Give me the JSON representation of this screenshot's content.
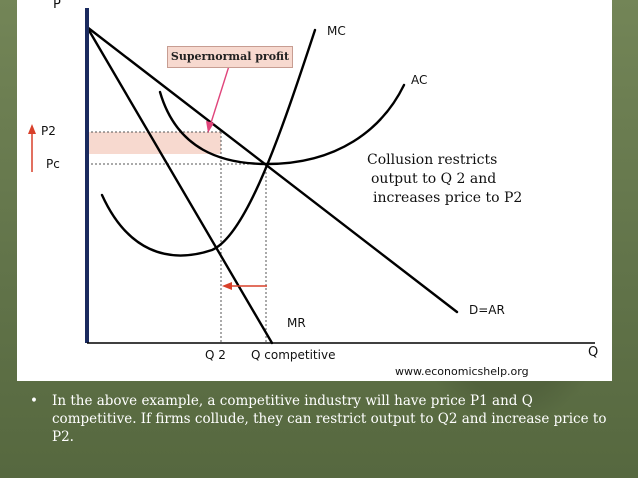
{
  "diagram": {
    "axis_labels": {
      "y": "P",
      "x": "Q"
    },
    "price_labels": {
      "p2": "P2",
      "pc": "Pc"
    },
    "quantity_labels": {
      "q2": "Q 2",
      "q_competitive": "Q competitive"
    },
    "curve_labels": {
      "mc": "MC",
      "ac": "AC",
      "mr": "MR",
      "demand": "D=AR"
    },
    "callout": "Supernormal profit",
    "note_lines": [
      "Collusion restricts",
      "output to Q 2 and",
      " increases price to P2"
    ],
    "source": "www.economicshelp.org",
    "colors": {
      "profit_area": "#f7d9cf",
      "callout_arrow": "#e0457b",
      "axis": "#1a2a5e",
      "shift_arrow": "#d8402a"
    }
  },
  "bullets": [
    "In the above example, a competitive industry will have price P1 and Q competitive. If firms collude, they can restrict output to Q2 and increase price to P2."
  ]
}
